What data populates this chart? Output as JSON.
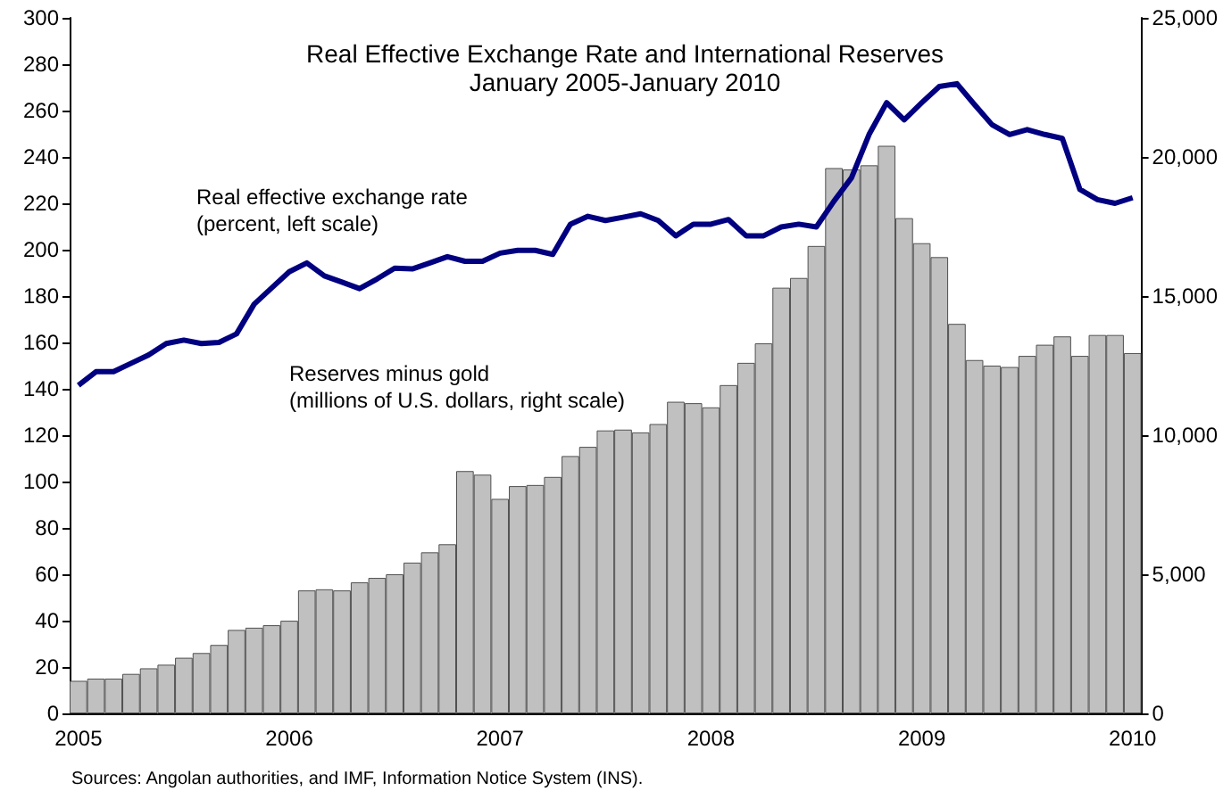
{
  "chart_data": {
    "type": "bar",
    "title": "Real Effective Exchange Rate and International Reserves",
    "subtitle": "January 2005-January 2010",
    "categories": [
      "2005",
      null,
      null,
      null,
      null,
      null,
      null,
      null,
      null,
      null,
      null,
      null,
      "2006",
      null,
      null,
      null,
      null,
      null,
      null,
      null,
      null,
      null,
      null,
      null,
      "2007",
      null,
      null,
      null,
      null,
      null,
      null,
      null,
      null,
      null,
      null,
      null,
      "2008",
      null,
      null,
      null,
      null,
      null,
      null,
      null,
      null,
      null,
      null,
      null,
      "2009",
      null,
      null,
      null,
      null,
      null,
      null,
      null,
      null,
      null,
      null,
      null,
      "2010"
    ],
    "series": [
      {
        "name": "Reserves minus gold\n(millions of U.S. dollars, right scale)",
        "axis": "y2",
        "color": "#c0c0c0",
        "values": [
          1170,
          1250,
          1250,
          1420,
          1620,
          1750,
          2000,
          2170,
          2460,
          3000,
          3080,
          3170,
          3330,
          4420,
          4460,
          4420,
          4710,
          4870,
          5000,
          5420,
          5790,
          6080,
          8710,
          8580,
          7710,
          8170,
          8210,
          8500,
          9250,
          9580,
          10170,
          10200,
          10100,
          10400,
          11200,
          11150,
          11000,
          11800,
          12600,
          13300,
          15300,
          15650,
          16800,
          19600,
          19550,
          19700,
          20400,
          17800,
          16900,
          16400,
          14000,
          12700,
          12500,
          12450,
          12850,
          13250,
          13550,
          12850,
          13600,
          13600,
          12950
        ]
      },
      {
        "name": "Real effective exchange rate\n(percent, left scale)",
        "type": "line",
        "color": "#000080",
        "values": [
          141.5,
          147.4,
          147.4,
          151,
          154.6,
          159.5,
          161,
          159.5,
          160,
          163.7,
          176.5,
          183.5,
          190.5,
          194.3,
          188.7,
          186,
          183.2,
          187.4,
          192,
          191.7,
          194.3,
          197,
          195,
          195,
          198.5,
          199.7,
          199.7,
          198,
          211,
          214.4,
          212.6,
          214,
          215.5,
          212.6,
          206,
          211,
          211,
          213,
          206,
          206,
          209.8,
          211,
          209.8,
          220.9,
          231,
          249.7,
          263.4,
          256,
          263.4,
          270.4,
          271.6,
          262.6,
          253.9,
          249.7,
          251.8,
          249.7,
          248,
          226,
          221.6,
          220,
          222.4
        ]
      }
    ],
    "ylim": [
      0,
      300
    ],
    "yticks": [
      0,
      20,
      40,
      60,
      80,
      100,
      120,
      140,
      160,
      180,
      200,
      220,
      240,
      260,
      280,
      300
    ],
    "y2lim": [
      0,
      25000
    ],
    "y2ticks": [
      0,
      {
        "value": 5000,
        "label": "5,000"
      },
      {
        "value": 10000,
        "label": "10,000"
      },
      {
        "value": 15000,
        "label": "15,000"
      },
      {
        "value": 20000,
        "label": "20,000"
      },
      {
        "value": 25000,
        "label": "25,000"
      }
    ],
    "annotations": [
      "Sources: Angolan authorities, and IMF, Information Notice System (INS)."
    ],
    "grid": false,
    "legend": false,
    "marker": "none",
    "line_style": "solid"
  }
}
